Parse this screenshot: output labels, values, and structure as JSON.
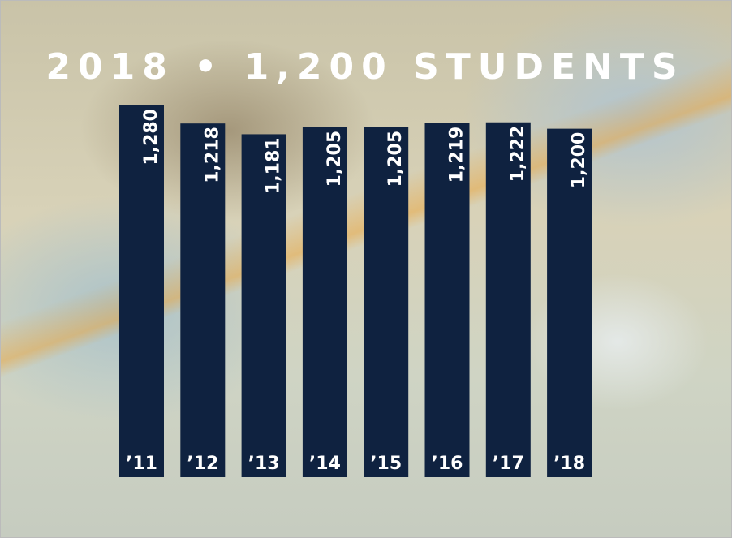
{
  "chart_data": {
    "type": "bar",
    "title": "2018 • 1,200 STUDENTS",
    "categories": [
      "’11",
      "’12",
      "’13",
      "’14",
      "’15",
      "’16",
      "’17",
      "’18"
    ],
    "values": [
      1280,
      1218,
      1181,
      1205,
      1205,
      1219,
      1222,
      1200
    ],
    "value_labels": [
      "1,280",
      "1,218",
      "1,181",
      "1,205",
      "1,205",
      "1,219",
      "1,222",
      "1,200"
    ],
    "color": "#0f2240"
  }
}
